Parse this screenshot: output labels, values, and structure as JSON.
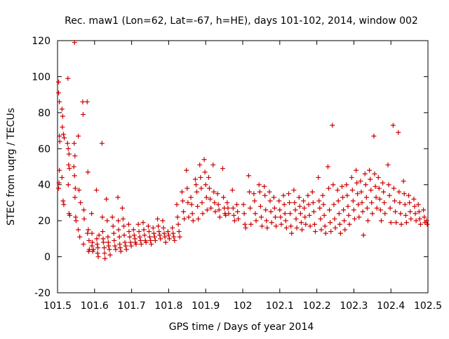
{
  "chart_data": {
    "type": "scatter",
    "title": "Rec. maw1 (Lon=62, Lat=-67, h=HE), days 101-102, 2014, window 002",
    "xlabel": "GPS time / Days of year 2014",
    "ylabel": "STEC from uqrg / TECUs",
    "xlim": [
      101.5,
      102.5
    ],
    "ylim": [
      -20,
      120
    ],
    "xticks": [
      "101.5",
      "101.6",
      "101.7",
      "101.8",
      "101.9",
      "102",
      "102.1",
      "102.2",
      "102.3",
      "102.4",
      "102.5"
    ],
    "yticks": [
      "-20",
      "0",
      "20",
      "40",
      "60",
      "80",
      "100",
      "120"
    ],
    "grid": false,
    "legend": "none",
    "marker": "+",
    "color": "#cc0000",
    "points": [
      [
        101.503,
        91
      ],
      [
        101.503,
        97
      ],
      [
        101.505,
        86
      ],
      [
        101.505,
        67
      ],
      [
        101.506,
        64
      ],
      [
        101.505,
        48
      ],
      [
        101.504,
        41
      ],
      [
        101.503,
        38
      ],
      [
        101.512,
        82
      ],
      [
        101.514,
        78
      ],
      [
        101.513,
        72
      ],
      [
        101.516,
        68
      ],
      [
        101.518,
        66
      ],
      [
        101.512,
        44
      ],
      [
        101.515,
        31
      ],
      [
        101.517,
        29
      ],
      [
        101.528,
        99
      ],
      [
        101.527,
        63
      ],
      [
        101.529,
        60
      ],
      [
        101.531,
        57
      ],
      [
        101.53,
        51
      ],
      [
        101.532,
        49
      ],
      [
        101.529,
        40
      ],
      [
        101.531,
        24
      ],
      [
        101.533,
        23
      ],
      [
        101.546,
        119
      ],
      [
        101.545,
        63
      ],
      [
        101.547,
        56
      ],
      [
        101.544,
        50
      ],
      [
        101.546,
        45
      ],
      [
        101.548,
        38
      ],
      [
        101.547,
        33
      ],
      [
        101.549,
        22
      ],
      [
        101.55,
        20
      ],
      [
        101.556,
        67
      ],
      [
        101.558,
        37
      ],
      [
        101.556,
        15
      ],
      [
        101.56,
        11
      ],
      [
        101.562,
        30
      ],
      [
        101.568,
        86
      ],
      [
        101.569,
        79
      ],
      [
        101.571,
        26
      ],
      [
        101.572,
        21
      ],
      [
        101.57,
        7
      ],
      [
        101.58,
        86
      ],
      [
        101.582,
        47
      ],
      [
        101.583,
        15
      ],
      [
        101.581,
        13
      ],
      [
        101.585,
        9
      ],
      [
        101.584,
        3
      ],
      [
        101.586,
        4
      ],
      [
        101.592,
        24
      ],
      [
        101.593,
        13
      ],
      [
        101.594,
        8
      ],
      [
        101.595,
        3
      ],
      [
        101.597,
        4
      ],
      [
        101.593,
        6
      ],
      [
        101.605,
        37
      ],
      [
        101.606,
        10
      ],
      [
        101.607,
        7
      ],
      [
        101.609,
        5
      ],
      [
        101.608,
        2
      ],
      [
        101.61,
        0
      ],
      [
        101.612,
        12
      ],
      [
        101.62,
        63
      ],
      [
        101.621,
        22
      ],
      [
        101.622,
        14
      ],
      [
        101.623,
        10
      ],
      [
        101.624,
        8
      ],
      [
        101.626,
        5
      ],
      [
        101.627,
        2
      ],
      [
        101.628,
        -1
      ],
      [
        101.632,
        32
      ],
      [
        101.634,
        20
      ],
      [
        101.636,
        11
      ],
      [
        101.637,
        8
      ],
      [
        101.638,
        6
      ],
      [
        101.64,
        4
      ],
      [
        101.642,
        1
      ],
      [
        101.648,
        22
      ],
      [
        101.65,
        17
      ],
      [
        101.652,
        13
      ],
      [
        101.653,
        9
      ],
      [
        101.655,
        6
      ],
      [
        101.657,
        4
      ],
      [
        101.663,
        33
      ],
      [
        101.664,
        20
      ],
      [
        101.665,
        15
      ],
      [
        101.667,
        11
      ],
      [
        101.668,
        7
      ],
      [
        101.669,
        5
      ],
      [
        101.671,
        3
      ],
      [
        101.675,
        27
      ],
      [
        101.677,
        21
      ],
      [
        101.679,
        17
      ],
      [
        101.68,
        12
      ],
      [
        101.682,
        8
      ],
      [
        101.684,
        6
      ],
      [
        101.686,
        4
      ],
      [
        101.692,
        18
      ],
      [
        101.693,
        14
      ],
      [
        101.695,
        11
      ],
      [
        101.697,
        8
      ],
      [
        101.699,
        6
      ],
      [
        101.705,
        15
      ],
      [
        101.707,
        12
      ],
      [
        101.709,
        10
      ],
      [
        101.71,
        8
      ],
      [
        101.712,
        7
      ],
      [
        101.718,
        18
      ],
      [
        101.72,
        14
      ],
      [
        101.722,
        11
      ],
      [
        101.724,
        9
      ],
      [
        101.726,
        7
      ],
      [
        101.731,
        19
      ],
      [
        101.733,
        15
      ],
      [
        101.735,
        12
      ],
      [
        101.737,
        9
      ],
      [
        101.739,
        8
      ],
      [
        101.745,
        17
      ],
      [
        101.747,
        14
      ],
      [
        101.749,
        11
      ],
      [
        101.751,
        9
      ],
      [
        101.753,
        7
      ],
      [
        101.758,
        16
      ],
      [
        101.76,
        13
      ],
      [
        101.762,
        11
      ],
      [
        101.764,
        9
      ],
      [
        101.77,
        21
      ],
      [
        101.772,
        17
      ],
      [
        101.774,
        14
      ],
      [
        101.776,
        12
      ],
      [
        101.778,
        10
      ],
      [
        101.784,
        20
      ],
      [
        101.786,
        16
      ],
      [
        101.788,
        13
      ],
      [
        101.79,
        11
      ],
      [
        101.792,
        8
      ],
      [
        101.798,
        14
      ],
      [
        101.8,
        12
      ],
      [
        101.802,
        10
      ],
      [
        101.81,
        16
      ],
      [
        101.812,
        13
      ],
      [
        101.814,
        11
      ],
      [
        101.816,
        9
      ],
      [
        101.822,
        29
      ],
      [
        101.824,
        22
      ],
      [
        101.826,
        18
      ],
      [
        101.828,
        14
      ],
      [
        101.83,
        11
      ],
      [
        101.836,
        36
      ],
      [
        101.838,
        31
      ],
      [
        101.84,
        25
      ],
      [
        101.842,
        21
      ],
      [
        101.848,
        48
      ],
      [
        101.85,
        38
      ],
      [
        101.852,
        30
      ],
      [
        101.854,
        22
      ],
      [
        101.86,
        33
      ],
      [
        101.862,
        29
      ],
      [
        101.864,
        24
      ],
      [
        101.866,
        20
      ],
      [
        101.872,
        43
      ],
      [
        101.874,
        40
      ],
      [
        101.876,
        36
      ],
      [
        101.878,
        28
      ],
      [
        101.88,
        21
      ],
      [
        101.884,
        51
      ],
      [
        101.886,
        44
      ],
      [
        101.888,
        38
      ],
      [
        101.89,
        30
      ],
      [
        101.892,
        24
      ],
      [
        101.896,
        54
      ],
      [
        101.898,
        47
      ],
      [
        101.9,
        40
      ],
      [
        101.902,
        33
      ],
      [
        101.904,
        26
      ],
      [
        101.908,
        44
      ],
      [
        101.91,
        38
      ],
      [
        101.912,
        32
      ],
      [
        101.914,
        27
      ],
      [
        101.92,
        51
      ],
      [
        101.922,
        36
      ],
      [
        101.924,
        30
      ],
      [
        101.926,
        25
      ],
      [
        101.932,
        35
      ],
      [
        101.934,
        29
      ],
      [
        101.936,
        26
      ],
      [
        101.938,
        22
      ],
      [
        101.946,
        49
      ],
      [
        101.948,
        33
      ],
      [
        101.95,
        27
      ],
      [
        101.952,
        24
      ],
      [
        101.954,
        23
      ],
      [
        101.958,
        30
      ],
      [
        101.96,
        27
      ],
      [
        101.962,
        24
      ],
      [
        101.972,
        37
      ],
      [
        101.974,
        27
      ],
      [
        101.976,
        23
      ],
      [
        101.978,
        20
      ],
      [
        101.984,
        29
      ],
      [
        101.986,
        25
      ],
      [
        101.988,
        21
      ],
      [
        102.002,
        29
      ],
      [
        102.004,
        24
      ],
      [
        102.006,
        18
      ],
      [
        102.008,
        16
      ],
      [
        102.016,
        45
      ],
      [
        102.018,
        36
      ],
      [
        102.02,
        27
      ],
      [
        102.022,
        18
      ],
      [
        102.03,
        35
      ],
      [
        102.032,
        31
      ],
      [
        102.034,
        24
      ],
      [
        102.036,
        20
      ],
      [
        102.044,
        40
      ],
      [
        102.046,
        36
      ],
      [
        102.048,
        28
      ],
      [
        102.05,
        22
      ],
      [
        102.052,
        17
      ],
      [
        102.058,
        39
      ],
      [
        102.06,
        34
      ],
      [
        102.062,
        26
      ],
      [
        102.064,
        20
      ],
      [
        102.066,
        16
      ],
      [
        102.072,
        36
      ],
      [
        102.074,
        31
      ],
      [
        102.076,
        25
      ],
      [
        102.078,
        19
      ],
      [
        102.084,
        33
      ],
      [
        102.086,
        27
      ],
      [
        102.088,
        22
      ],
      [
        102.09,
        17
      ],
      [
        102.098,
        31
      ],
      [
        102.1,
        26
      ],
      [
        102.102,
        22
      ],
      [
        102.104,
        18
      ],
      [
        102.11,
        34
      ],
      [
        102.112,
        29
      ],
      [
        102.114,
        24
      ],
      [
        102.116,
        20
      ],
      [
        102.118,
        16
      ],
      [
        102.124,
        35
      ],
      [
        102.126,
        30
      ],
      [
        102.128,
        24
      ],
      [
        102.13,
        17
      ],
      [
        102.132,
        13
      ],
      [
        102.138,
        37
      ],
      [
        102.14,
        30
      ],
      [
        102.142,
        26
      ],
      [
        102.144,
        21
      ],
      [
        102.146,
        16
      ],
      [
        102.152,
        33
      ],
      [
        102.154,
        28
      ],
      [
        102.156,
        24
      ],
      [
        102.158,
        19
      ],
      [
        102.16,
        15
      ],
      [
        102.164,
        31
      ],
      [
        102.166,
        27
      ],
      [
        102.168,
        22
      ],
      [
        102.17,
        18
      ],
      [
        102.176,
        34
      ],
      [
        102.178,
        29
      ],
      [
        102.18,
        23
      ],
      [
        102.182,
        17
      ],
      [
        102.188,
        36
      ],
      [
        102.19,
        30
      ],
      [
        102.192,
        25
      ],
      [
        102.194,
        18
      ],
      [
        102.196,
        14
      ],
      [
        102.204,
        44
      ],
      [
        102.206,
        31
      ],
      [
        102.208,
        27
      ],
      [
        102.21,
        21
      ],
      [
        102.212,
        15
      ],
      [
        102.216,
        34
      ],
      [
        102.218,
        29
      ],
      [
        102.22,
        23
      ],
      [
        102.222,
        17
      ],
      [
        102.224,
        13
      ],
      [
        102.23,
        50
      ],
      [
        102.232,
        38
      ],
      [
        102.234,
        26
      ],
      [
        102.236,
        19
      ],
      [
        102.238,
        14
      ],
      [
        102.242,
        73
      ],
      [
        102.244,
        40
      ],
      [
        102.246,
        29
      ],
      [
        102.248,
        21
      ],
      [
        102.25,
        16
      ],
      [
        102.256,
        37
      ],
      [
        102.258,
        31
      ],
      [
        102.26,
        24
      ],
      [
        102.262,
        18
      ],
      [
        102.264,
        13
      ],
      [
        102.268,
        39
      ],
      [
        102.27,
        33
      ],
      [
        102.272,
        26
      ],
      [
        102.274,
        20
      ],
      [
        102.276,
        15
      ],
      [
        102.28,
        40
      ],
      [
        102.282,
        34
      ],
      [
        102.284,
        28
      ],
      [
        102.286,
        23
      ],
      [
        102.288,
        18
      ],
      [
        102.294,
        44
      ],
      [
        102.296,
        37
      ],
      [
        102.298,
        31
      ],
      [
        102.3,
        26
      ],
      [
        102.302,
        21
      ],
      [
        102.306,
        48
      ],
      [
        102.308,
        41
      ],
      [
        102.31,
        35
      ],
      [
        102.312,
        29
      ],
      [
        102.314,
        22
      ],
      [
        102.318,
        42
      ],
      [
        102.32,
        36
      ],
      [
        102.322,
        30
      ],
      [
        102.324,
        25
      ],
      [
        102.326,
        12
      ],
      [
        102.33,
        46
      ],
      [
        102.332,
        40
      ],
      [
        102.334,
        33
      ],
      [
        102.336,
        27
      ],
      [
        102.338,
        20
      ],
      [
        102.342,
        48
      ],
      [
        102.344,
        43
      ],
      [
        102.346,
        37
      ],
      [
        102.348,
        30
      ],
      [
        102.35,
        24
      ],
      [
        102.354,
        67
      ],
      [
        102.356,
        46
      ],
      [
        102.358,
        39
      ],
      [
        102.36,
        33
      ],
      [
        102.362,
        27
      ],
      [
        102.366,
        44
      ],
      [
        102.368,
        38
      ],
      [
        102.37,
        32
      ],
      [
        102.372,
        26
      ],
      [
        102.374,
        20
      ],
      [
        102.378,
        41
      ],
      [
        102.38,
        36
      ],
      [
        102.382,
        30
      ],
      [
        102.384,
        24
      ],
      [
        102.392,
        51
      ],
      [
        102.394,
        40
      ],
      [
        102.396,
        34
      ],
      [
        102.398,
        27
      ],
      [
        102.4,
        19
      ],
      [
        102.406,
        73
      ],
      [
        102.408,
        38
      ],
      [
        102.41,
        31
      ],
      [
        102.412,
        25
      ],
      [
        102.414,
        19
      ],
      [
        102.42,
        69
      ],
      [
        102.422,
        36
      ],
      [
        102.424,
        30
      ],
      [
        102.426,
        24
      ],
      [
        102.428,
        18
      ],
      [
        102.434,
        42
      ],
      [
        102.436,
        35
      ],
      [
        102.438,
        29
      ],
      [
        102.44,
        23
      ],
      [
        102.442,
        19
      ],
      [
        102.448,
        34
      ],
      [
        102.45,
        30
      ],
      [
        102.452,
        25
      ],
      [
        102.454,
        21
      ],
      [
        102.462,
        32
      ],
      [
        102.464,
        28
      ],
      [
        102.466,
        24
      ],
      [
        102.468,
        20
      ],
      [
        102.474,
        29
      ],
      [
        102.476,
        25
      ],
      [
        102.478,
        21
      ],
      [
        102.48,
        18
      ],
      [
        102.488,
        26
      ],
      [
        102.49,
        22
      ],
      [
        102.492,
        19
      ],
      [
        102.496,
        20
      ],
      [
        102.498,
        18
      ]
    ]
  }
}
